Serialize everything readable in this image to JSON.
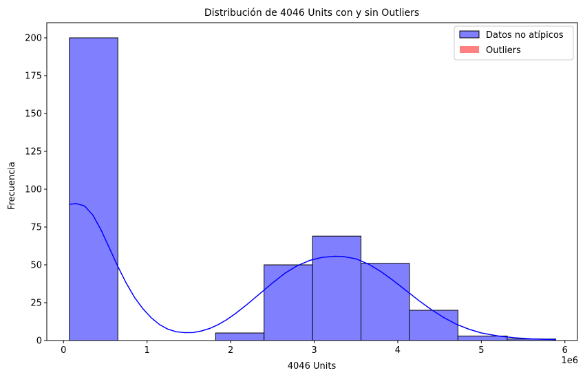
{
  "chart_data": {
    "type": "bar",
    "title": "Distribución de 4046 Units con y sin Outliers",
    "xlabel": "4046 Units",
    "ylabel": "Frecuencia",
    "x_offset_label": "1e6",
    "xlim": [
      -0.2,
      6.15
    ],
    "ylim": [
      0,
      210
    ],
    "x_ticks": [
      0,
      1,
      2,
      3,
      4,
      5,
      6
    ],
    "x_tick_labels": [
      "0",
      "1",
      "2",
      "3",
      "4",
      "5",
      "6"
    ],
    "y_ticks": [
      0,
      25,
      50,
      75,
      100,
      125,
      150,
      175,
      200
    ],
    "y_tick_labels": [
      "0",
      "25",
      "50",
      "75",
      "100",
      "125",
      "150",
      "175",
      "200"
    ],
    "grid": false,
    "legend_position": "top-right",
    "series": [
      {
        "name": "Datos no atípicos",
        "color": "#8080ff",
        "edge_color": "#000000",
        "bins": [
          {
            "x0": 0.07,
            "x1": 0.65,
            "count": 200
          },
          {
            "x0": 0.65,
            "x1": 1.24,
            "count": 0
          },
          {
            "x0": 1.24,
            "x1": 1.82,
            "count": 0
          },
          {
            "x0": 1.82,
            "x1": 2.4,
            "count": 5
          },
          {
            "x0": 2.4,
            "x1": 2.98,
            "count": 50
          },
          {
            "x0": 2.98,
            "x1": 3.56,
            "count": 69
          },
          {
            "x0": 3.56,
            "x1": 4.14,
            "count": 51
          },
          {
            "x0": 4.14,
            "x1": 4.72,
            "count": 20
          },
          {
            "x0": 4.72,
            "x1": 5.31,
            "count": 3
          },
          {
            "x0": 5.31,
            "x1": 5.89,
            "count": 1
          }
        ],
        "kde": {
          "color": "#0000ff",
          "x": [
            0.07,
            0.15,
            0.25,
            0.35,
            0.45,
            0.55,
            0.65,
            0.75,
            0.85,
            0.95,
            1.05,
            1.15,
            1.25,
            1.35,
            1.45,
            1.55,
            1.65,
            1.75,
            1.85,
            1.95,
            2.05,
            2.2,
            2.35,
            2.5,
            2.65,
            2.8,
            2.95,
            3.1,
            3.25,
            3.35,
            3.5,
            3.65,
            3.8,
            3.95,
            4.1,
            4.25,
            4.4,
            4.55,
            4.7,
            4.85,
            5.0,
            5.2,
            5.4,
            5.6,
            5.89
          ],
          "y": [
            90,
            90.5,
            89,
            83,
            73,
            61,
            49,
            38,
            28.5,
            21,
            15,
            10.5,
            7.5,
            5.8,
            5.2,
            5.3,
            6.3,
            8,
            10.5,
            13.7,
            17.5,
            24,
            31,
            38,
            44.5,
            49.5,
            53,
            55,
            55.7,
            55.5,
            54,
            50.5,
            45.5,
            39.5,
            33,
            26.5,
            20.5,
            15.2,
            10.8,
            7.5,
            5,
            3,
            1.8,
            1.1,
            0.6
          ]
        }
      },
      {
        "name": "Outliers",
        "color": "#ff8080",
        "bins": []
      }
    ]
  }
}
